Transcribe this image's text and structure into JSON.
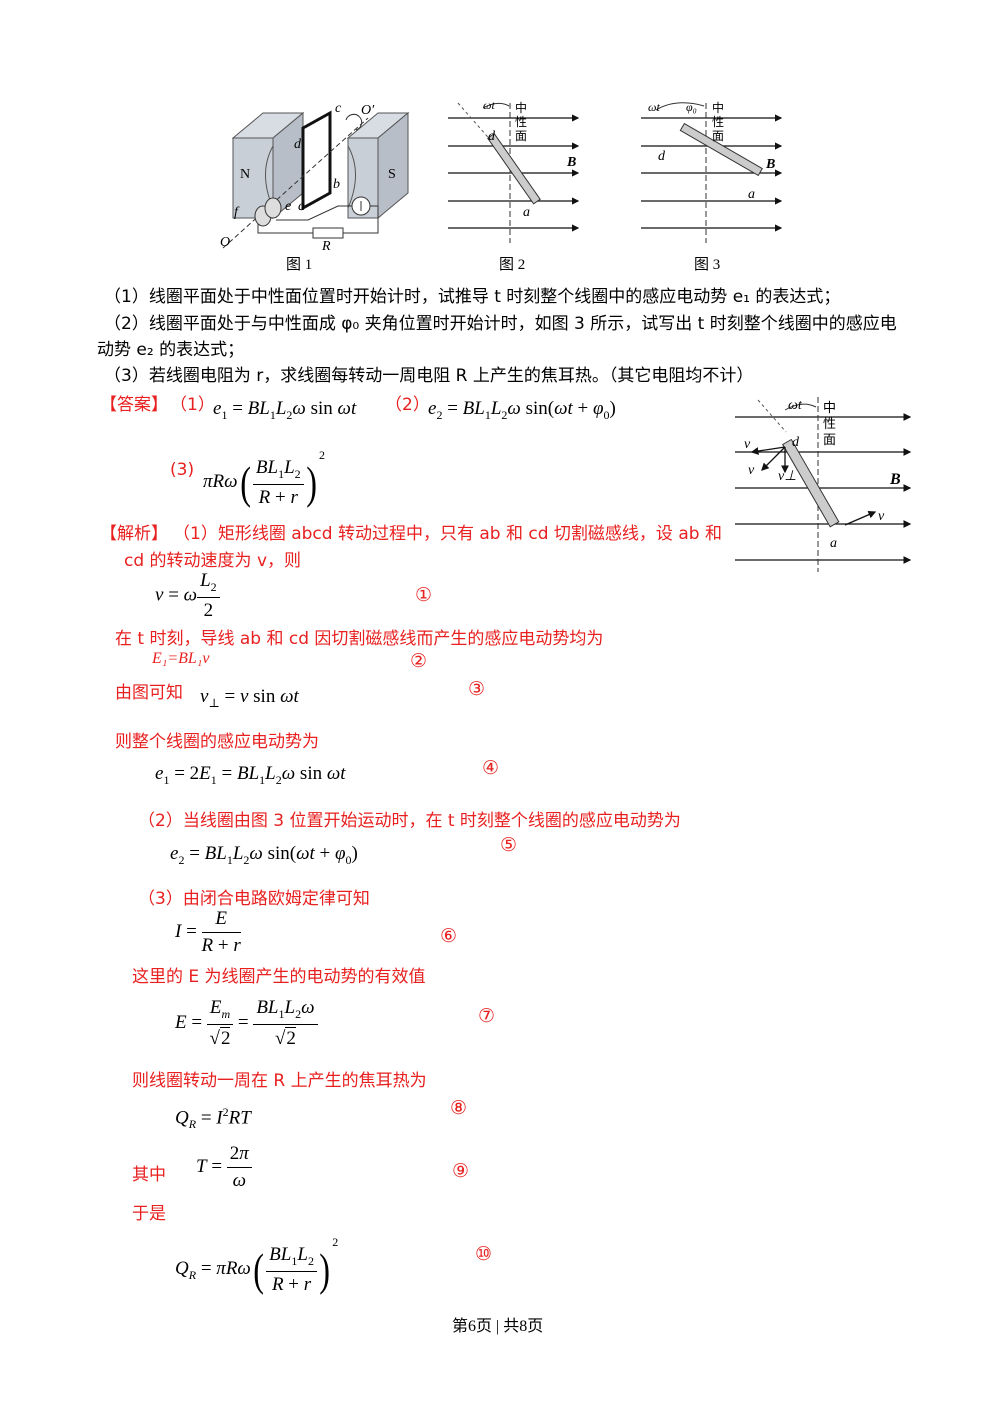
{
  "figures": {
    "fig1": {
      "caption": "图 1",
      "labels": {
        "n": "N",
        "s": "S",
        "o": "O",
        "o_prime": "O′",
        "c": "c",
        "d": "d",
        "b": "b",
        "a": "a",
        "e": "e",
        "f": "f",
        "r": "R"
      }
    },
    "fig2": {
      "caption": "图 2",
      "labels": {
        "wt": "ωt",
        "neutral": [
          "中",
          "性",
          "面"
        ],
        "d": "d",
        "a": "a",
        "b": "B"
      }
    },
    "fig3": {
      "caption": "图 3",
      "labels": {
        "wt": "ωt",
        "phi0": "φ₀",
        "neutral": [
          "中",
          "性",
          "面"
        ],
        "d": "d",
        "a": "a",
        "b": "B"
      }
    },
    "fig4": {
      "labels": {
        "wt": "ωt",
        "neutral": [
          "中",
          "性",
          "面"
        ],
        "v": "v",
        "v_perp": "v⊥",
        "d": "d",
        "a": "a",
        "b": "B"
      }
    }
  },
  "questions": {
    "q1": "（1）线圈平面处于中性面位置时开始计时，试推导 t 时刻整个线圈中的感应电动势 e₁ 的表达式；",
    "q2_line1": "（2）线圈平面处于与中性面成 φ₀ 夹角位置时开始计时，如图 3 所示，试写出 t 时刻整个线圈中的感应电",
    "q2_line2": "动势 e₂ 的表达式；",
    "q3": "（3）若线圈电阻为 r，求线圈每转动一周电阻 R 上产生的焦耳热。（其它电阻均不计）"
  },
  "answer": {
    "label": "【答案】",
    "n1": "（1）",
    "n2": "（2）",
    "n3": "(3)"
  },
  "analysis": {
    "label": "【解析】",
    "p1_line1": "（1）矩形线圈 abcd 转动过程中，只有 ab 和 cd 切割磁感线，设 ab 和",
    "p1_line2": "cd 的转动速度为 v，则",
    "t_moment": "在 t 时刻，导线 ab 和 cd 因切割磁感线而产生的感应电动势均为",
    "e1_bl1v": "E₁=BL₁v",
    "from_figure": "由图可知",
    "whole_coil": "则整个线圈的感应电动势为",
    "p2": "（2）当线圈由图 3 位置开始运动时，在 t 时刻整个线圈的感应电动势为",
    "p3": "（3）由闭合电路欧姆定律可知",
    "here_e": "这里的 E 为线圈产生的电动势的有效值",
    "heat": "则线圈转动一周在 R 上产生的焦耳热为",
    "where": "其中",
    "thus": "于是"
  },
  "circled": [
    "①",
    "②",
    "③",
    "④",
    "⑤",
    "⑥",
    "⑦",
    "⑧",
    "⑨",
    "⑩"
  ],
  "footer": "第6页 | 共8页",
  "colors": {
    "accent": "#e8201f",
    "text": "#000000"
  }
}
